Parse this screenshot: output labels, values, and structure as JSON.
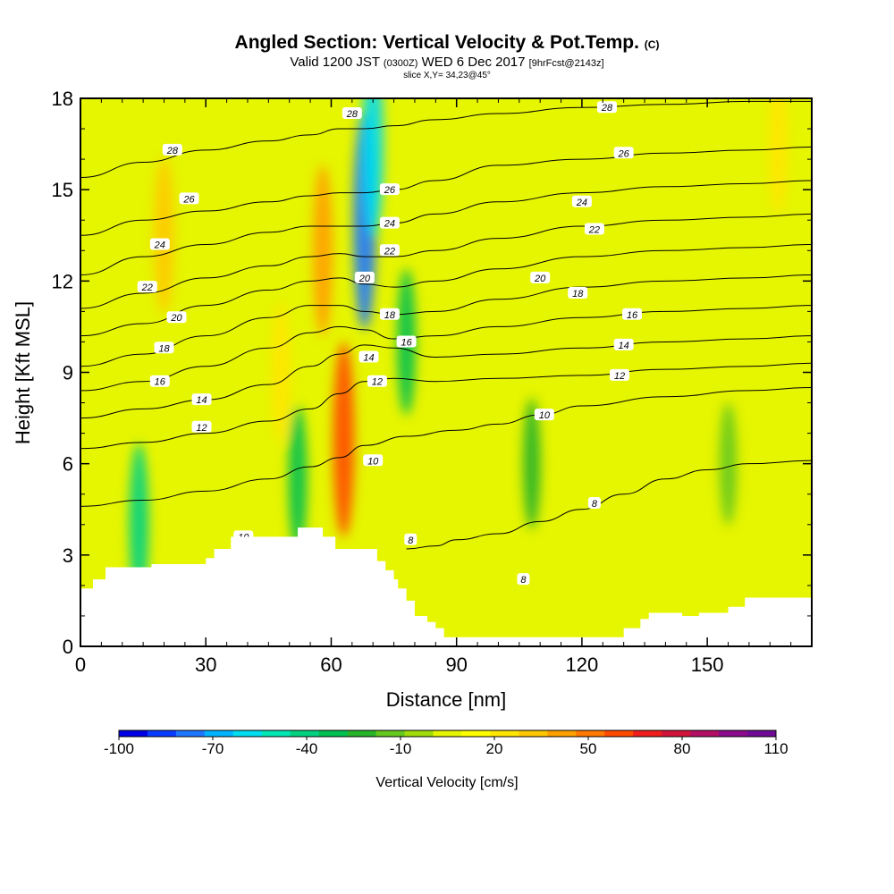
{
  "chart_data": {
    "type": "heatmap",
    "title": "Angled Section: Vertical Velocity & Pot.Temp.",
    "title_mark": "(C)",
    "subtitle": {
      "valid_label": "Valid 1200 JST",
      "utc": "(0300Z)",
      "date": "WED 6 Dec 2017",
      "forecast": "[9hrFcst@2143z]"
    },
    "slice_label": "slice X,Y= 34,23@45°",
    "xlabel": "Distance [nm]",
    "ylabel": "Height [Kft MSL]",
    "xlim": [
      0,
      175
    ],
    "ylim": [
      0,
      18
    ],
    "x_ticks": [
      "0",
      "30",
      "60",
      "90",
      "120",
      "150"
    ],
    "y_ticks": [
      "0",
      "3",
      "6",
      "9",
      "12",
      "15",
      "18"
    ],
    "colorbar": {
      "label": "Vertical Velocity [cm/s]",
      "tick_labels": [
        "-100",
        "-70",
        "-40",
        "-10",
        "20",
        "50",
        "80",
        "110"
      ],
      "range": [
        -100,
        110
      ],
      "colors": [
        "#0000e6",
        "#0a3cff",
        "#1e78ff",
        "#00b4ff",
        "#00dcf0",
        "#00e6b4",
        "#00d282",
        "#00c050",
        "#28b428",
        "#64c81e",
        "#a0dc0a",
        "#e6f500",
        "#ffff00",
        "#ffe600",
        "#ffc800",
        "#ffa000",
        "#ff7800",
        "#ff4b00",
        "#f01e1e",
        "#d2143c",
        "#b40f64",
        "#8c0a8c",
        "#6e0a96"
      ]
    },
    "velocity_field": {
      "description_units": "cm/s",
      "features": [
        {
          "x": 14,
          "y": 4.0,
          "value": -40
        },
        {
          "x": 20,
          "y": 13.5,
          "value": 35
        },
        {
          "x": 48,
          "y": 9.0,
          "value": 25
        },
        {
          "x": 52,
          "y": 5.5,
          "value": -30
        },
        {
          "x": 58,
          "y": 13.0,
          "value": 45
        },
        {
          "x": 63,
          "y": 6.8,
          "value": 60
        },
        {
          "x": 68,
          "y": 14.0,
          "value": -75
        },
        {
          "x": 70,
          "y": 16.5,
          "value": -55
        },
        {
          "x": 78,
          "y": 10.0,
          "value": -30
        },
        {
          "x": 108,
          "y": 6.0,
          "value": -20
        },
        {
          "x": 155,
          "y": 6.0,
          "value": -15
        },
        {
          "x": 167,
          "y": 16.5,
          "value": 25
        }
      ]
    },
    "theta_contours": [
      {
        "label": "8",
        "points": [
          [
            78,
            3.2
          ],
          [
            85,
            3.3
          ],
          [
            90,
            3.5
          ],
          [
            100,
            3.7
          ],
          [
            110,
            4.1
          ],
          [
            120,
            4.5
          ],
          [
            130,
            5.0
          ],
          [
            140,
            5.5
          ],
          [
            150,
            5.8
          ],
          [
            160,
            6.0
          ],
          [
            175,
            6.1
          ]
        ]
      },
      {
        "label": "10",
        "points": [
          [
            0,
            4.6
          ],
          [
            15,
            4.8
          ],
          [
            30,
            5.1
          ],
          [
            45,
            5.5
          ],
          [
            55,
            5.9
          ],
          [
            62,
            6.2
          ],
          [
            68,
            6.6
          ],
          [
            78,
            6.9
          ],
          [
            90,
            7.1
          ],
          [
            100,
            7.3
          ],
          [
            110,
            7.6
          ],
          [
            120,
            7.9
          ],
          [
            140,
            8.2
          ],
          [
            160,
            8.4
          ],
          [
            175,
            8.5
          ]
        ]
      },
      {
        "label": "12",
        "points": [
          [
            0,
            6.5
          ],
          [
            15,
            6.7
          ],
          [
            30,
            7.0
          ],
          [
            45,
            7.4
          ],
          [
            55,
            7.8
          ],
          [
            62,
            8.3
          ],
          [
            68,
            8.7
          ],
          [
            75,
            8.8
          ],
          [
            85,
            8.7
          ],
          [
            100,
            8.8
          ],
          [
            120,
            8.9
          ],
          [
            140,
            9.1
          ],
          [
            160,
            9.2
          ],
          [
            175,
            9.3
          ]
        ]
      },
      {
        "label": "14",
        "points": [
          [
            0,
            7.5
          ],
          [
            15,
            7.8
          ],
          [
            30,
            8.1
          ],
          [
            45,
            8.6
          ],
          [
            55,
            9.2
          ],
          [
            62,
            9.6
          ],
          [
            68,
            9.9
          ],
          [
            75,
            9.8
          ],
          [
            85,
            9.5
          ],
          [
            100,
            9.6
          ],
          [
            120,
            9.8
          ],
          [
            140,
            10.0
          ],
          [
            160,
            10.1
          ],
          [
            175,
            10.2
          ]
        ]
      },
      {
        "label": "16",
        "points": [
          [
            0,
            8.4
          ],
          [
            15,
            8.7
          ],
          [
            30,
            9.2
          ],
          [
            45,
            9.8
          ],
          [
            55,
            10.3
          ],
          [
            62,
            10.5
          ],
          [
            68,
            10.4
          ],
          [
            75,
            10.1
          ],
          [
            85,
            10.2
          ],
          [
            100,
            10.5
          ],
          [
            120,
            10.8
          ],
          [
            140,
            11.0
          ],
          [
            160,
            11.1
          ],
          [
            175,
            11.2
          ]
        ]
      },
      {
        "label": "18",
        "points": [
          [
            0,
            9.2
          ],
          [
            15,
            9.6
          ],
          [
            30,
            10.2
          ],
          [
            45,
            10.8
          ],
          [
            55,
            11.2
          ],
          [
            62,
            11.2
          ],
          [
            68,
            11.0
          ],
          [
            75,
            10.9
          ],
          [
            85,
            11.0
          ],
          [
            100,
            11.4
          ],
          [
            120,
            11.8
          ],
          [
            140,
            12.0
          ],
          [
            160,
            12.1
          ],
          [
            175,
            12.2
          ]
        ]
      },
      {
        "label": "20",
        "points": [
          [
            0,
            10.2
          ],
          [
            15,
            10.6
          ],
          [
            30,
            11.2
          ],
          [
            45,
            11.7
          ],
          [
            55,
            12.0
          ],
          [
            62,
            12.1
          ],
          [
            68,
            11.9
          ],
          [
            75,
            11.8
          ],
          [
            85,
            12.0
          ],
          [
            100,
            12.4
          ],
          [
            120,
            12.8
          ],
          [
            140,
            13.0
          ],
          [
            160,
            13.1
          ],
          [
            175,
            13.2
          ]
        ]
      },
      {
        "label": "22",
        "points": [
          [
            0,
            11.1
          ],
          [
            15,
            11.6
          ],
          [
            30,
            12.1
          ],
          [
            45,
            12.5
          ],
          [
            55,
            12.8
          ],
          [
            62,
            12.9
          ],
          [
            68,
            12.8
          ],
          [
            75,
            12.8
          ],
          [
            85,
            13.0
          ],
          [
            100,
            13.4
          ],
          [
            120,
            13.8
          ],
          [
            140,
            14.0
          ],
          [
            160,
            14.1
          ],
          [
            175,
            14.2
          ]
        ]
      },
      {
        "label": "24",
        "points": [
          [
            0,
            12.2
          ],
          [
            15,
            12.8
          ],
          [
            30,
            13.2
          ],
          [
            45,
            13.6
          ],
          [
            55,
            13.8
          ],
          [
            62,
            13.8
          ],
          [
            68,
            13.8
          ],
          [
            75,
            13.9
          ],
          [
            85,
            14.2
          ],
          [
            100,
            14.6
          ],
          [
            120,
            14.9
          ],
          [
            140,
            15.1
          ],
          [
            160,
            15.2
          ],
          [
            175,
            15.3
          ]
        ]
      },
      {
        "label": "26",
        "points": [
          [
            0,
            13.5
          ],
          [
            15,
            14.0
          ],
          [
            30,
            14.3
          ],
          [
            45,
            14.6
          ],
          [
            55,
            14.8
          ],
          [
            62,
            14.9
          ],
          [
            68,
            14.9
          ],
          [
            75,
            15.0
          ],
          [
            85,
            15.3
          ],
          [
            100,
            15.8
          ],
          [
            120,
            16.0
          ],
          [
            140,
            16.2
          ],
          [
            160,
            16.3
          ],
          [
            175,
            16.4
          ]
        ]
      },
      {
        "label": "28",
        "points": [
          [
            0,
            15.4
          ],
          [
            15,
            15.9
          ],
          [
            30,
            16.3
          ],
          [
            45,
            16.6
          ],
          [
            55,
            16.8
          ],
          [
            62,
            17.0
          ],
          [
            68,
            17.0
          ],
          [
            75,
            17.1
          ],
          [
            85,
            17.3
          ],
          [
            100,
            17.5
          ],
          [
            120,
            17.7
          ],
          [
            140,
            17.8
          ],
          [
            160,
            17.9
          ],
          [
            175,
            17.9
          ]
        ]
      }
    ],
    "contour_labels": [
      {
        "text": "28",
        "x": 22,
        "y": 16.3
      },
      {
        "text": "26",
        "x": 26,
        "y": 14.7
      },
      {
        "text": "24",
        "x": 19,
        "y": 13.2
      },
      {
        "text": "22",
        "x": 16,
        "y": 11.8
      },
      {
        "text": "20",
        "x": 23,
        "y": 10.8
      },
      {
        "text": "18",
        "x": 20,
        "y": 9.8
      },
      {
        "text": "16",
        "x": 19,
        "y": 8.7
      },
      {
        "text": "14",
        "x": 29,
        "y": 8.1
      },
      {
        "text": "12",
        "x": 29,
        "y": 7.2
      },
      {
        "text": "10",
        "x": 39,
        "y": 3.6
      },
      {
        "text": "28",
        "x": 65,
        "y": 17.5
      },
      {
        "text": "26",
        "x": 74,
        "y": 15.0
      },
      {
        "text": "24",
        "x": 74,
        "y": 13.9
      },
      {
        "text": "22",
        "x": 74,
        "y": 13.0
      },
      {
        "text": "20",
        "x": 68,
        "y": 12.1
      },
      {
        "text": "18",
        "x": 74,
        "y": 10.9
      },
      {
        "text": "16",
        "x": 78,
        "y": 10.0
      },
      {
        "text": "14",
        "x": 69,
        "y": 9.5
      },
      {
        "text": "12",
        "x": 71,
        "y": 8.7
      },
      {
        "text": "10",
        "x": 70,
        "y": 6.1
      },
      {
        "text": "8",
        "x": 79,
        "y": 3.5
      },
      {
        "text": "28",
        "x": 126,
        "y": 17.7
      },
      {
        "text": "26",
        "x": 130,
        "y": 16.2
      },
      {
        "text": "24",
        "x": 120,
        "y": 14.6
      },
      {
        "text": "22",
        "x": 123,
        "y": 13.7
      },
      {
        "text": "20",
        "x": 110,
        "y": 12.1
      },
      {
        "text": "18",
        "x": 119,
        "y": 11.6
      },
      {
        "text": "16",
        "x": 132,
        "y": 10.9
      },
      {
        "text": "14",
        "x": 130,
        "y": 9.9
      },
      {
        "text": "12",
        "x": 129,
        "y": 8.9
      },
      {
        "text": "10",
        "x": 111,
        "y": 7.6
      },
      {
        "text": "8",
        "x": 123,
        "y": 4.7
      },
      {
        "text": "8",
        "x": 106,
        "y": 2.2
      }
    ],
    "terrain_profile_kft": [
      [
        0,
        1.9
      ],
      [
        3,
        1.9
      ],
      [
        3,
        2.2
      ],
      [
        6,
        2.2
      ],
      [
        6,
        2.6
      ],
      [
        17,
        2.6
      ],
      [
        17,
        2.7
      ],
      [
        30,
        2.7
      ],
      [
        30,
        2.9
      ],
      [
        32,
        2.9
      ],
      [
        32,
        3.2
      ],
      [
        36,
        3.2
      ],
      [
        36,
        3.6
      ],
      [
        52,
        3.6
      ],
      [
        52,
        3.9
      ],
      [
        58,
        3.9
      ],
      [
        58,
        3.6
      ],
      [
        61,
        3.6
      ],
      [
        61,
        3.2
      ],
      [
        71,
        3.2
      ],
      [
        71,
        2.8
      ],
      [
        73,
        2.8
      ],
      [
        73,
        2.5
      ],
      [
        75,
        2.5
      ],
      [
        75,
        2.2
      ],
      [
        76,
        2.2
      ],
      [
        76,
        1.9
      ],
      [
        78,
        1.9
      ],
      [
        78,
        1.5
      ],
      [
        80,
        1.5
      ],
      [
        80,
        1.0
      ],
      [
        83,
        1.0
      ],
      [
        83,
        0.8
      ],
      [
        85,
        0.8
      ],
      [
        85,
        0.6
      ],
      [
        87,
        0.6
      ],
      [
        87,
        0.3
      ],
      [
        130,
        0.3
      ],
      [
        130,
        0.6
      ],
      [
        134,
        0.6
      ],
      [
        134,
        0.9
      ],
      [
        136,
        0.9
      ],
      [
        136,
        1.1
      ],
      [
        144,
        1.1
      ],
      [
        144,
        1.0
      ],
      [
        148,
        1.0
      ],
      [
        148,
        1.1
      ],
      [
        155,
        1.1
      ],
      [
        155,
        1.3
      ],
      [
        159,
        1.3
      ],
      [
        159,
        1.6
      ],
      [
        175,
        1.6
      ]
    ]
  }
}
